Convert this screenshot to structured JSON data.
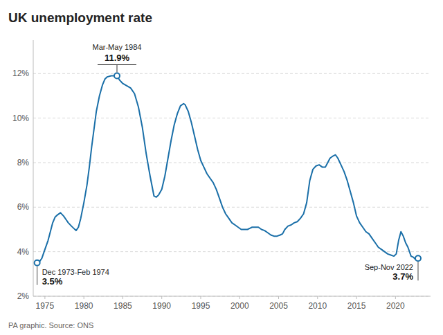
{
  "chart_data": {
    "type": "line",
    "title": "UK unemployment rate",
    "source": "PA graphic. Source: ONS",
    "color": "#1a6fa8",
    "grid": true,
    "xlim": [
      1973.5,
      2024.5
    ],
    "xticks": [
      1975,
      1980,
      1985,
      1990,
      1995,
      2000,
      2005,
      2010,
      2015,
      2020
    ],
    "ylim": [
      2,
      13.5
    ],
    "yticks": [
      {
        "value": 2,
        "label": "2%"
      },
      {
        "value": 4,
        "label": "4%"
      },
      {
        "value": 6,
        "label": "6%"
      },
      {
        "value": 8,
        "label": "8%"
      },
      {
        "value": 10,
        "label": "10%"
      },
      {
        "value": 12,
        "label": "12%"
      }
    ],
    "annotations": [
      {
        "x": 1984.25,
        "y": 11.9,
        "label": "Mar-May 1984",
        "value_label": "11.9%"
      },
      {
        "x": 1974.0,
        "y": 3.5,
        "label": "Dec 1973-Feb 1974",
        "value_label": "3.5%"
      },
      {
        "x": 2022.9,
        "y": 3.7,
        "label": "Sep-Nov 2022",
        "value_label": "3.7%"
      }
    ],
    "x": [
      1974.0,
      1974.3,
      1974.6,
      1975.0,
      1975.4,
      1975.7,
      1976.0,
      1976.3,
      1976.6,
      1977.0,
      1977.4,
      1977.7,
      1978.0,
      1978.4,
      1978.7,
      1979.0,
      1979.3,
      1979.6,
      1980.0,
      1980.4,
      1980.7,
      1981.0,
      1981.3,
      1981.6,
      1982.0,
      1982.4,
      1982.7,
      1983.0,
      1983.5,
      1984.25,
      1984.6,
      1985.0,
      1985.5,
      1986.0,
      1986.5,
      1987.0,
      1987.5,
      1988.0,
      1988.5,
      1989.0,
      1989.3,
      1989.6,
      1990.0,
      1990.4,
      1990.8,
      1991.2,
      1991.6,
      1992.0,
      1992.4,
      1992.8,
      1993.0,
      1993.4,
      1993.8,
      1994.2,
      1994.6,
      1995.0,
      1995.4,
      1995.8,
      1996.2,
      1996.6,
      1997.0,
      1997.4,
      1997.8,
      1998.2,
      1998.6,
      1999.0,
      1999.4,
      1999.8,
      2000.2,
      2000.6,
      2001.0,
      2001.3,
      2001.6,
      2002.0,
      2002.4,
      2002.8,
      2003.2,
      2003.6,
      2004.0,
      2004.4,
      2004.8,
      2005.2,
      2005.5,
      2005.8,
      2006.2,
      2006.6,
      2007.0,
      2007.4,
      2007.8,
      2008.2,
      2008.6,
      2009.0,
      2009.4,
      2009.8,
      2010.2,
      2010.6,
      2011.0,
      2011.3,
      2011.6,
      2012.0,
      2012.3,
      2012.6,
      2013.0,
      2013.4,
      2013.8,
      2014.2,
      2014.6,
      2015.0,
      2015.4,
      2015.8,
      2016.2,
      2016.6,
      2017.0,
      2017.4,
      2017.8,
      2018.2,
      2018.6,
      2019.0,
      2019.4,
      2019.8,
      2020.1,
      2020.4,
      2020.7,
      2021.0,
      2021.3,
      2021.6,
      2022.0,
      2022.3,
      2022.6,
      2022.9,
      2023.2
    ],
    "values": [
      3.5,
      3.55,
      3.7,
      4.1,
      4.5,
      4.9,
      5.3,
      5.55,
      5.65,
      5.75,
      5.6,
      5.45,
      5.3,
      5.15,
      5.05,
      4.95,
      5.1,
      5.5,
      6.2,
      7.0,
      7.8,
      8.7,
      9.5,
      10.3,
      11.0,
      11.5,
      11.75,
      11.85,
      11.9,
      11.9,
      11.7,
      11.55,
      11.45,
      11.35,
      11.1,
      10.5,
      9.6,
      8.4,
      7.4,
      6.5,
      6.45,
      6.55,
      6.8,
      7.4,
      8.2,
      9.0,
      9.7,
      10.2,
      10.55,
      10.65,
      10.6,
      10.3,
      9.8,
      9.2,
      8.6,
      8.1,
      7.8,
      7.5,
      7.3,
      7.1,
      6.8,
      6.4,
      6.0,
      5.7,
      5.5,
      5.3,
      5.2,
      5.1,
      5.0,
      5.0,
      5.0,
      5.05,
      5.1,
      5.1,
      5.1,
      5.0,
      4.95,
      4.85,
      4.75,
      4.7,
      4.7,
      4.75,
      4.8,
      5.0,
      5.15,
      5.2,
      5.3,
      5.35,
      5.5,
      5.7,
      6.2,
      7.2,
      7.7,
      7.85,
      7.9,
      7.8,
      7.8,
      8.0,
      8.2,
      8.3,
      8.35,
      8.2,
      7.9,
      7.6,
      7.2,
      6.7,
      6.2,
      5.6,
      5.3,
      5.1,
      4.9,
      4.8,
      4.6,
      4.4,
      4.2,
      4.1,
      4.0,
      3.9,
      3.85,
      3.8,
      3.9,
      4.5,
      4.9,
      4.7,
      4.4,
      4.2,
      3.8,
      3.75,
      3.65,
      3.7,
      3.75
    ]
  }
}
